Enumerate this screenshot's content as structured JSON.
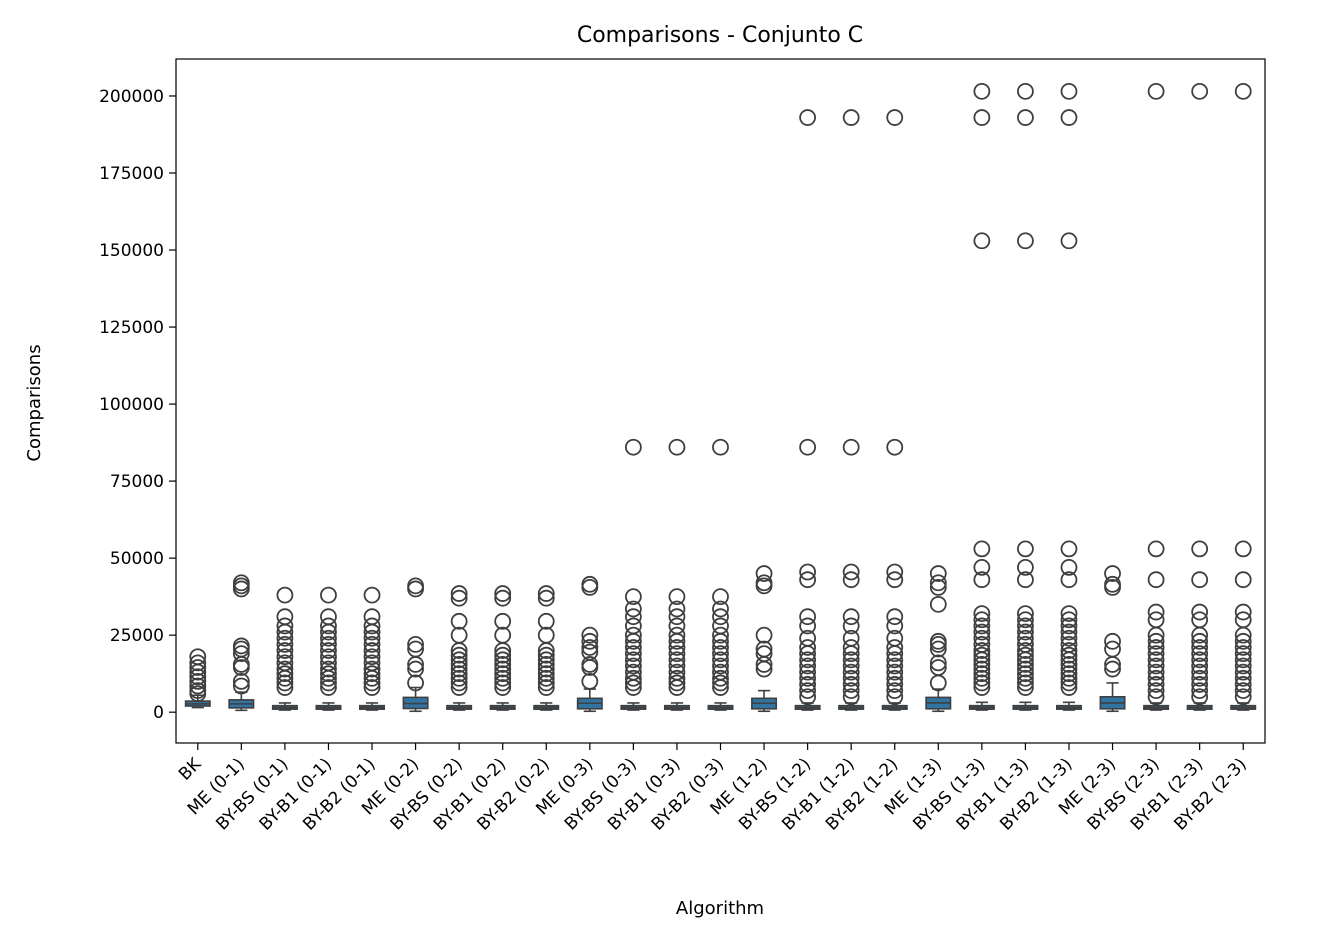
{
  "chart_data": {
    "type": "box",
    "title": "Comparisons - Conjunto C",
    "xlabel": "Algorithm",
    "ylabel": "Comparisons",
    "ylim": [
      -10000,
      212000
    ],
    "yticks": [
      0,
      25000,
      50000,
      75000,
      100000,
      125000,
      150000,
      175000,
      200000
    ],
    "grid": false,
    "box_color": "#3274a1",
    "categories": [
      "BK",
      "ME (0-1)",
      "BY-BS (0-1)",
      "BY-B1 (0-1)",
      "BY-B2 (0-1)",
      "ME (0-2)",
      "BY-BS (0-2)",
      "BY-B1 (0-2)",
      "BY-B2 (0-2)",
      "ME (0-3)",
      "BY-BS (0-3)",
      "BY-B1 (0-3)",
      "BY-B2 (0-3)",
      "ME (1-2)",
      "BY-BS (1-2)",
      "BY-B1 (1-2)",
      "BY-B2 (1-2)",
      "ME (1-3)",
      "BY-BS (1-3)",
      "BY-B1 (1-3)",
      "BY-B2 (1-3)",
      "ME (2-3)",
      "BY-BS (2-3)",
      "BY-B1 (2-3)",
      "BY-B2 (2-3)"
    ],
    "boxes": [
      {
        "whislo": 1500,
        "q1": 2000,
        "med": 2700,
        "q3": 3600,
        "whishi": 5500,
        "fliers": [
          6000,
          7000,
          8500,
          10000,
          11500,
          13000,
          14500,
          16000,
          18000
        ]
      },
      {
        "whislo": 600,
        "q1": 1400,
        "med": 2700,
        "q3": 4000,
        "whishi": 6500,
        "fliers": [
          8500,
          10000,
          14500,
          15500,
          19000,
          20500,
          21500,
          40000,
          41000,
          42000
        ]
      },
      {
        "whislo": 700,
        "q1": 1100,
        "med": 1500,
        "q3": 2000,
        "whishi": 3000,
        "fliers": [
          8000,
          9500,
          11000,
          12500,
          14000,
          16000,
          18000,
          20000,
          22000,
          24000,
          26000,
          28000,
          31000,
          38000
        ]
      },
      {
        "whislo": 700,
        "q1": 1100,
        "med": 1500,
        "q3": 2000,
        "whishi": 3000,
        "fliers": [
          8000,
          9500,
          11000,
          12500,
          14000,
          16000,
          18000,
          20000,
          22000,
          24000,
          26000,
          28000,
          31000,
          38000
        ]
      },
      {
        "whislo": 700,
        "q1": 1100,
        "med": 1500,
        "q3": 2000,
        "whishi": 3000,
        "fliers": [
          8000,
          9500,
          11000,
          12500,
          14000,
          16000,
          18000,
          20000,
          22000,
          24000,
          26000,
          28000,
          31000,
          38000
        ]
      },
      {
        "whislo": 300,
        "q1": 1200,
        "med": 2800,
        "q3": 4800,
        "whishi": 8000,
        "fliers": [
          9500,
          14000,
          15500,
          20500,
          22000,
          40000,
          41000
        ]
      },
      {
        "whislo": 700,
        "q1": 1100,
        "med": 1500,
        "q3": 2000,
        "whishi": 3000,
        "fliers": [
          8000,
          9500,
          11000,
          12500,
          14000,
          15500,
          17000,
          18500,
          20000,
          25000,
          29500,
          37000,
          38500
        ]
      },
      {
        "whislo": 700,
        "q1": 1100,
        "med": 1500,
        "q3": 2000,
        "whishi": 3000,
        "fliers": [
          8000,
          9500,
          11000,
          12500,
          14000,
          15500,
          17000,
          18500,
          20000,
          25000,
          29500,
          37000,
          38500
        ]
      },
      {
        "whislo": 700,
        "q1": 1100,
        "med": 1500,
        "q3": 2000,
        "whishi": 3000,
        "fliers": [
          8000,
          9500,
          11000,
          12500,
          14000,
          15500,
          17000,
          18500,
          20000,
          25000,
          29500,
          37000,
          38500
        ]
      },
      {
        "whislo": 300,
        "q1": 1100,
        "med": 2900,
        "q3": 4500,
        "whishi": 7500,
        "fliers": [
          10000,
          14500,
          15500,
          19500,
          21000,
          23000,
          25000,
          40500,
          41500
        ]
      },
      {
        "whislo": 700,
        "q1": 1100,
        "med": 1500,
        "q3": 2000,
        "whishi": 3000,
        "fliers": [
          8000,
          9500,
          11000,
          13000,
          15000,
          17000,
          19000,
          21000,
          23000,
          25000,
          28000,
          31000,
          33500,
          37500,
          86000
        ]
      },
      {
        "whislo": 700,
        "q1": 1100,
        "med": 1500,
        "q3": 2000,
        "whishi": 3000,
        "fliers": [
          8000,
          9500,
          11000,
          13000,
          15000,
          17000,
          19000,
          21000,
          23000,
          25000,
          28000,
          31000,
          33500,
          37500,
          86000
        ]
      },
      {
        "whislo": 700,
        "q1": 1100,
        "med": 1500,
        "q3": 2000,
        "whishi": 3000,
        "fliers": [
          8000,
          9500,
          11000,
          13000,
          15000,
          17000,
          19000,
          21000,
          23000,
          25000,
          28000,
          31000,
          33500,
          37500,
          86000
        ]
      },
      {
        "whislo": 300,
        "q1": 1100,
        "med": 2900,
        "q3": 4500,
        "whishi": 7000,
        "fliers": [
          14000,
          15500,
          19000,
          20500,
          25000,
          41000,
          42000,
          45000
        ]
      },
      {
        "whislo": 700,
        "q1": 1100,
        "med": 1500,
        "q3": 2000,
        "whishi": 3000,
        "fliers": [
          5000,
          7000,
          9000,
          11000,
          13000,
          15000,
          17000,
          19000,
          21000,
          24000,
          28000,
          31000,
          43000,
          45500,
          86000,
          193000
        ]
      },
      {
        "whislo": 700,
        "q1": 1100,
        "med": 1500,
        "q3": 2000,
        "whishi": 3000,
        "fliers": [
          5000,
          7000,
          9000,
          11000,
          13000,
          15000,
          17000,
          19000,
          21000,
          24000,
          28000,
          31000,
          43000,
          45500,
          86000,
          193000
        ]
      },
      {
        "whislo": 700,
        "q1": 1100,
        "med": 1500,
        "q3": 2000,
        "whishi": 3000,
        "fliers": [
          5000,
          7000,
          9000,
          11000,
          13000,
          15000,
          17000,
          19000,
          21000,
          24000,
          28000,
          31000,
          43000,
          45500,
          86000,
          193000
        ]
      },
      {
        "whislo": 300,
        "q1": 1100,
        "med": 3000,
        "q3": 4800,
        "whishi": 7500,
        "fliers": [
          9500,
          14500,
          16000,
          20500,
          22000,
          23000,
          35000,
          40500,
          42000,
          45000
        ]
      },
      {
        "whislo": 700,
        "q1": 1100,
        "med": 1500,
        "q3": 2000,
        "whishi": 3200,
        "fliers": [
          8000,
          9500,
          11000,
          12500,
          14000,
          15500,
          17000,
          18500,
          20000,
          22000,
          24000,
          26000,
          28000,
          30000,
          32000,
          43000,
          47000,
          53000,
          153000,
          193000,
          201500
        ]
      },
      {
        "whislo": 700,
        "q1": 1100,
        "med": 1500,
        "q3": 2000,
        "whishi": 3200,
        "fliers": [
          8000,
          9500,
          11000,
          12500,
          14000,
          15500,
          17000,
          18500,
          20000,
          22000,
          24000,
          26000,
          28000,
          30000,
          32000,
          43000,
          47000,
          53000,
          153000,
          193000,
          201500
        ]
      },
      {
        "whislo": 700,
        "q1": 1100,
        "med": 1500,
        "q3": 2000,
        "whishi": 3200,
        "fliers": [
          8000,
          9500,
          11000,
          12500,
          14000,
          15500,
          17000,
          18500,
          20000,
          22000,
          24000,
          26000,
          28000,
          30000,
          32000,
          43000,
          47000,
          53000,
          153000,
          193000,
          201500
        ]
      },
      {
        "whislo": 300,
        "q1": 1100,
        "med": 3000,
        "q3": 5000,
        "whishi": 9500,
        "fliers": [
          14000,
          15500,
          20500,
          23000,
          40500,
          41500,
          45000
        ]
      },
      {
        "whislo": 700,
        "q1": 1100,
        "med": 1500,
        "q3": 2000,
        "whishi": 3000,
        "fliers": [
          5000,
          7000,
          9000,
          11000,
          13000,
          15000,
          17000,
          19000,
          21000,
          23000,
          25000,
          30000,
          32500,
          43000,
          53000,
          201500
        ]
      },
      {
        "whislo": 700,
        "q1": 1100,
        "med": 1500,
        "q3": 2000,
        "whishi": 3000,
        "fliers": [
          5000,
          7000,
          9000,
          11000,
          13000,
          15000,
          17000,
          19000,
          21000,
          23000,
          25000,
          30000,
          32500,
          43000,
          53000,
          201500
        ]
      },
      {
        "whislo": 700,
        "q1": 1100,
        "med": 1500,
        "q3": 2000,
        "whishi": 3000,
        "fliers": [
          5000,
          7000,
          9000,
          11000,
          13000,
          15000,
          17000,
          19000,
          21000,
          23000,
          25000,
          30000,
          32500,
          43000,
          53000,
          201500
        ]
      }
    ]
  }
}
